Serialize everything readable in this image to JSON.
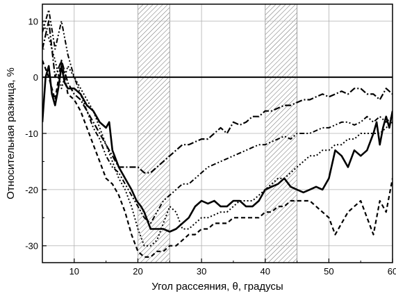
{
  "chart_data": {
    "type": "line",
    "xlabel": "Угол рассеяния, θ, градусы",
    "ylabel": "Относительная разница, %",
    "xlim": [
      5,
      60
    ],
    "ylim": [
      -33,
      13
    ],
    "x_ticks": [
      10,
      20,
      30,
      40,
      50,
      60
    ],
    "y_ticks": [
      10,
      0,
      -10,
      -20,
      -30
    ],
    "grid": true,
    "zero_line": 0,
    "shaded_bands": [
      [
        20,
        25
      ],
      [
        40,
        45
      ]
    ],
    "series": [
      {
        "style": "solid",
        "x": [
          5.0,
          5.5,
          6.0,
          6.5,
          7.0,
          7.5,
          8.0,
          8.5,
          9.0,
          9.5,
          10.0,
          11.0,
          12.0,
          13.0,
          14.0,
          15.0,
          15.5,
          16.0,
          17.0,
          18.0,
          19.0,
          19.8,
          20.5,
          21.0,
          22.0,
          23.0,
          24.0,
          25.0,
          26.0,
          27.0,
          28.0,
          29.0,
          30.0,
          31.0,
          32.0,
          33.0,
          34.0,
          35.0,
          36.0,
          37.0,
          38.0,
          39.0,
          40.0,
          41.0,
          42.0,
          43.0,
          44.0,
          45.0,
          46.0,
          47.0,
          48.0,
          49.0,
          50.0,
          51.0,
          52.0,
          53.0,
          54.0,
          55.0,
          56.0,
          57.0,
          57.5,
          58.0,
          58.5,
          59.0,
          59.5,
          60.0
        ],
        "y": [
          -8,
          0,
          2,
          -3,
          -5,
          -2,
          2,
          -1,
          -2,
          -2,
          -2,
          -3,
          -5,
          -6,
          -8,
          -9,
          -8,
          -13,
          -16,
          -18,
          -20,
          -22,
          -23,
          -24,
          -27,
          -27,
          -27,
          -27.5,
          -27,
          -26,
          -25,
          -23,
          -22,
          -22.5,
          -22,
          -23,
          -23,
          -22,
          -22,
          -23,
          -23,
          -22,
          -20,
          -19.5,
          -19,
          -18,
          -19.5,
          -20,
          -20.5,
          -20,
          -19.5,
          -20,
          -18,
          -13,
          -14,
          -16,
          -13,
          -14,
          -13,
          -10,
          -8,
          -12,
          -9,
          -7,
          -9,
          -6
        ]
      },
      {
        "style": "dash-dot",
        "x": [
          5,
          6,
          7,
          8,
          9,
          10,
          11,
          12,
          13,
          14,
          15,
          16,
          17,
          18,
          19,
          20,
          21,
          22,
          23,
          24,
          25,
          26,
          27,
          28,
          29,
          30,
          31,
          32,
          33,
          34,
          35,
          36,
          37,
          38,
          39,
          40,
          41,
          42,
          43,
          44,
          45,
          46,
          47,
          48,
          49,
          50,
          51,
          52,
          53,
          54,
          55,
          56,
          57,
          58,
          59,
          60
        ],
        "y": [
          5,
          10,
          0,
          3,
          -1,
          -3,
          -4,
          -6,
          -8,
          -10,
          -12,
          -14,
          -16,
          -16,
          -16,
          -16,
          -17,
          -17,
          -16,
          -15,
          -14,
          -13,
          -12,
          -12,
          -11.5,
          -11,
          -11,
          -10,
          -9,
          -10,
          -8,
          -8.5,
          -8,
          -7,
          -7,
          -6,
          -6,
          -5.5,
          -5,
          -5,
          -4.5,
          -4,
          -4,
          -3.5,
          -3,
          -3.5,
          -3,
          -2.5,
          -3,
          -2,
          -2,
          -3,
          -3,
          -4,
          -2,
          -3
        ]
      },
      {
        "style": "dash-dot-dot",
        "x": [
          5,
          6,
          7,
          8,
          9,
          10,
          11,
          12,
          13,
          14,
          15,
          16,
          17,
          18,
          19,
          20,
          21,
          22,
          23,
          24,
          25,
          26,
          27,
          28,
          29,
          30,
          31,
          32,
          33,
          34,
          35,
          36,
          37,
          38,
          39,
          40,
          41,
          42,
          43,
          44,
          45,
          46,
          47,
          48,
          49,
          50,
          51,
          52,
          53,
          54,
          55,
          56,
          57,
          58,
          59,
          60
        ],
        "y": [
          8,
          12,
          5,
          10,
          4,
          0,
          -3,
          -6,
          -9,
          -11,
          -14,
          -16,
          -17,
          -19,
          -21,
          -23,
          -25,
          -26,
          -24,
          -22,
          -21,
          -20,
          -19,
          -19,
          -18,
          -17,
          -16,
          -15.5,
          -15,
          -14.5,
          -14,
          -13.5,
          -13,
          -12.5,
          -12,
          -12,
          -11.5,
          -11,
          -10.5,
          -11,
          -10,
          -10,
          -10,
          -9.5,
          -9,
          -9,
          -8.5,
          -8,
          -8,
          -8.5,
          -8,
          -7,
          -8,
          -7,
          -8,
          -7
        ]
      },
      {
        "style": "dotted",
        "x": [
          5,
          6,
          7,
          8,
          9,
          10,
          11,
          12,
          13,
          14,
          15,
          16,
          17,
          18,
          19,
          20,
          21,
          22,
          23,
          24,
          25,
          26,
          27,
          28,
          29,
          30,
          31,
          32,
          33,
          34,
          35,
          36,
          37,
          38,
          39,
          40,
          41,
          42,
          43,
          44,
          45,
          46,
          47,
          48,
          49,
          50,
          51,
          52,
          53,
          54,
          55,
          56,
          57,
          58,
          59,
          60
        ],
        "y": [
          10,
          7,
          3,
          -2,
          2,
          0,
          -2,
          -4,
          -6,
          -9,
          -12,
          -15,
          -18,
          -20,
          -23,
          -27,
          -30,
          -30,
          -29,
          -26,
          -23,
          -24,
          -27,
          -27,
          -26,
          -25,
          -25,
          -24.5,
          -24,
          -24,
          -23,
          -22,
          -22,
          -22,
          -21,
          -20,
          -19,
          -18,
          -18,
          -17,
          -16,
          -15,
          -14,
          -14,
          -13,
          -13,
          -12,
          -12,
          -11,
          -11,
          -10,
          -10,
          -10,
          -10,
          -9,
          -8
        ]
      },
      {
        "style": "dashed",
        "x": [
          5,
          6,
          7,
          8,
          9,
          10,
          11,
          12,
          13,
          14,
          15,
          16,
          17,
          18,
          19,
          20,
          21,
          22,
          23,
          24,
          25,
          26,
          27,
          28,
          29,
          30,
          31,
          32,
          33,
          34,
          35,
          36,
          37,
          38,
          39,
          40,
          41,
          42,
          43,
          44,
          45,
          46,
          47,
          48,
          49,
          50,
          51,
          52,
          53,
          54,
          55,
          56,
          57,
          58,
          59,
          60
        ],
        "y": [
          3,
          0,
          -4,
          3,
          -3,
          -4,
          -6,
          -9,
          -12,
          -15,
          -18,
          -19,
          -21,
          -24,
          -28,
          -31,
          -32,
          -32,
          -31,
          -31,
          -30,
          -30,
          -29,
          -28,
          -28,
          -27,
          -27,
          -26,
          -26,
          -26,
          -25,
          -25,
          -25,
          -25,
          -25,
          -24,
          -24,
          -23,
          -23,
          -22,
          -22,
          -22,
          -22,
          -23,
          -24,
          -25,
          -28,
          -26,
          -24,
          -23,
          -22,
          -25,
          -28,
          -22,
          -24,
          -18
        ]
      }
    ]
  }
}
